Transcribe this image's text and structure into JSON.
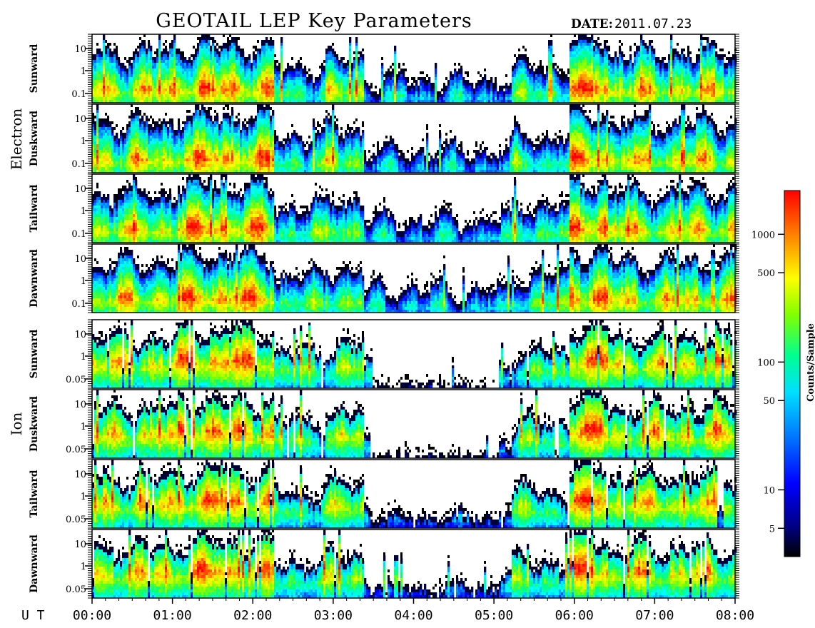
{
  "title": "GEOTAIL LEP Key Parameters",
  "date_label": "DATE:",
  "date_value": "2011.07.23",
  "x_axis_label": "U T",
  "chart_data": {
    "type": "heatmap",
    "title": "GEOTAIL LEP Key Parameters",
    "xlabel": "U T",
    "x_ticks": [
      "00:00",
      "01:00",
      "02:00",
      "03:00",
      "04:00",
      "05:00",
      "06:00",
      "07:00",
      "08:00"
    ],
    "xlim": [
      "00:00",
      "08:00"
    ],
    "groups": [
      {
        "name": "Electron",
        "y_scale": "log",
        "y_ticks": [
          "10",
          "1",
          "0.1"
        ],
        "panels": [
          "Sunward",
          "Duskward",
          "Tailward",
          "Dawnward"
        ]
      },
      {
        "name": "Ion",
        "y_scale": "log",
        "y_ticks": [
          "10",
          "1",
          "0.05"
        ],
        "panels": [
          "Sunward",
          "Duskward",
          "Tailward",
          "Dawnward"
        ]
      }
    ],
    "colorbar": {
      "label": "Counts/Sample",
      "scale": "log",
      "ticks": [
        "1000",
        "500",
        "100",
        "50",
        "10",
        "5"
      ],
      "colormap": [
        "#000000",
        "#00007f",
        "#0000ff",
        "#0080ff",
        "#00ffff",
        "#00ff80",
        "#80ff00",
        "#ffff00",
        "#ff8000",
        "#ff0000"
      ]
    }
  }
}
